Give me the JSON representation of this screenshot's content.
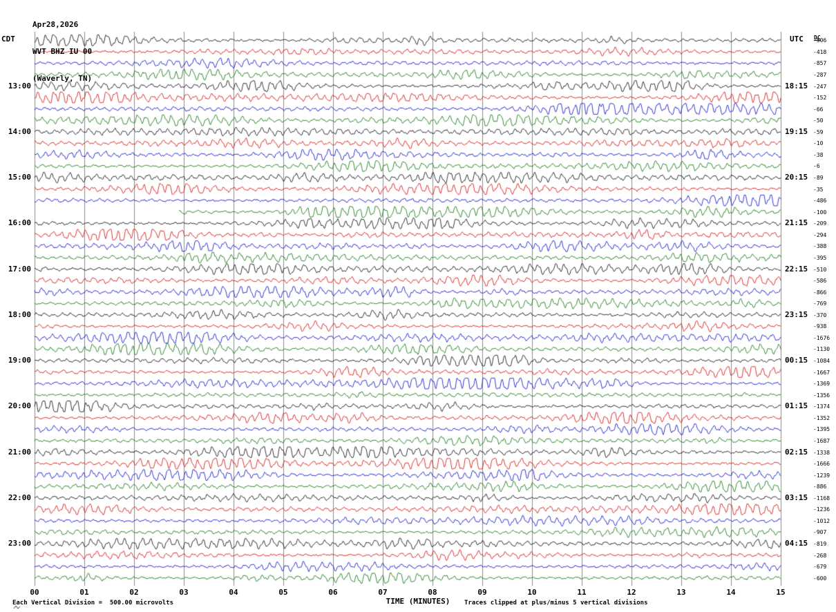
{
  "header": {
    "date": "Apr28,2026",
    "station": "WVT BHZ IU 00",
    "location": "(Waverly, TN)"
  },
  "axes": {
    "left_label": "CDT",
    "right_label": "UTC",
    "dc_label": "DC",
    "x_title": "TIME (MINUTES)",
    "x_ticks": [
      "00",
      "01",
      "02",
      "03",
      "04",
      "05",
      "06",
      "07",
      "08",
      "09",
      "10",
      "11",
      "12",
      "13",
      "14",
      "15"
    ]
  },
  "left_time_labels": [
    "13:00",
    "14:00",
    "15:00",
    "16:00",
    "17:00",
    "18:00",
    "19:00",
    "20:00",
    "21:00",
    "22:00",
    "23:00"
  ],
  "right_time_labels": [
    "18:15",
    "19:15",
    "20:15",
    "21:15",
    "22:15",
    "23:15",
    "00:15",
    "01:15",
    "02:15",
    "03:15",
    "04:15"
  ],
  "dc_values": [
    "-506",
    "-418",
    "-857",
    "-287",
    "-247",
    "-152",
    "-66",
    "-50",
    "-59",
    "-10",
    "-38",
    "-6",
    "-89",
    "-35",
    "-486",
    "-100",
    "-209",
    "-294",
    "-388",
    "-395",
    "-510",
    "-586",
    "-866",
    "-769",
    "-370",
    "-938",
    "-1676",
    "-1130",
    "-1084",
    "-1667",
    "-1369",
    "-1356",
    "-1374",
    "-1352",
    "-1395",
    "-1687",
    "-1338",
    "-1666",
    "-1239",
    "-886",
    "-1168",
    "-1236",
    "-1012",
    "-907",
    "-819",
    "-268",
    "-679",
    "-600"
  ],
  "footer": {
    "left": "Each Vertical Division =  500.00 microvolts",
    "right": "Traces clipped at plus/minus 5 vertical divisions"
  },
  "colors": {
    "black": "#000000",
    "red": "#d40000",
    "blue": "#0000c8",
    "green": "#006e00",
    "grid": "#8a8a8a",
    "background": "#ffffff"
  },
  "chart_data": {
    "type": "line",
    "variant": "helicorder-seismogram",
    "n_rows": 48,
    "minutes_per_row": 15,
    "start_time_cdt": "12:00",
    "end_time_cdt": "00:00",
    "utc_offset_hours": 5,
    "row_color_cycle": [
      "#000000",
      "#d40000",
      "#0000c8",
      "#006e00"
    ],
    "hour_label_rows": [
      4,
      8,
      12,
      16,
      20,
      24,
      28,
      32,
      36,
      40,
      44
    ],
    "x_axis_range_minutes": [
      0,
      15
    ],
    "grid": "vertical-minute-lines",
    "gaps": [
      {
        "row": 15,
        "start_minute": 0.0,
        "end_minute": 2.9
      }
    ],
    "clip_divisions": 5,
    "microvolts_per_division": 500.0,
    "description": "Continuous background seismic noise traces, one 15-minute row per line, colors cycling black/red/blue/green, amplitudes of roughly 1-5 small divisions with intermittent bursts"
  }
}
